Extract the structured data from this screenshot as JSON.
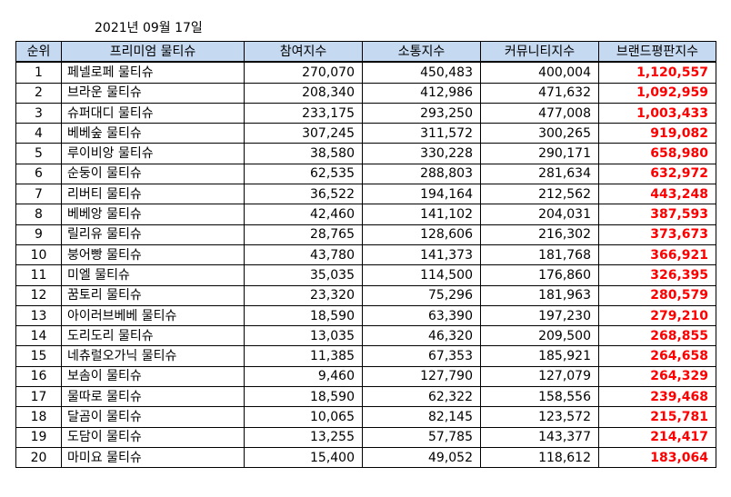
{
  "date": "2021년 09월 17일",
  "headers": [
    "순위",
    "프리미엄 물티슈",
    "참여지수",
    "소통지수",
    "커뮤니티지수",
    "브랜드평판지수"
  ],
  "accent_color": "#ff0000",
  "header_bg": "#c5d9f1",
  "rows": [
    {
      "rank": "1",
      "name": "페넬로페 물티슈",
      "participation": "270,070",
      "communication": "450,483",
      "community": "400,004",
      "brand": "1,120,557"
    },
    {
      "rank": "2",
      "name": "브라운 물티슈",
      "participation": "208,340",
      "communication": "412,986",
      "community": "471,632",
      "brand": "1,092,959"
    },
    {
      "rank": "3",
      "name": "슈퍼대디 물티슈",
      "participation": "233,175",
      "communication": "293,250",
      "community": "477,008",
      "brand": "1,003,433"
    },
    {
      "rank": "4",
      "name": "베베숲 물티슈",
      "participation": "307,245",
      "communication": "311,572",
      "community": "300,265",
      "brand": "919,082"
    },
    {
      "rank": "5",
      "name": "루이비앙 물티슈",
      "participation": "38,580",
      "communication": "330,228",
      "community": "290,171",
      "brand": "658,980"
    },
    {
      "rank": "6",
      "name": "순둥이 물티슈",
      "participation": "62,535",
      "communication": "288,803",
      "community": "281,634",
      "brand": "632,972"
    },
    {
      "rank": "7",
      "name": "리버티 물티슈",
      "participation": "36,522",
      "communication": "194,164",
      "community": "212,562",
      "brand": "443,248"
    },
    {
      "rank": "8",
      "name": "베베앙 물티슈",
      "participation": "42,460",
      "communication": "141,102",
      "community": "204,031",
      "brand": "387,593"
    },
    {
      "rank": "9",
      "name": "릴리유 물티슈",
      "participation": "28,765",
      "communication": "128,606",
      "community": "216,302",
      "brand": "373,673"
    },
    {
      "rank": "10",
      "name": "붕어빵 물티슈",
      "participation": "43,780",
      "communication": "141,373",
      "community": "181,768",
      "brand": "366,921"
    },
    {
      "rank": "11",
      "name": "미엘 물티슈",
      "participation": "35,035",
      "communication": "114,500",
      "community": "176,860",
      "brand": "326,395"
    },
    {
      "rank": "12",
      "name": "꿈토리 물티슈",
      "participation": "23,320",
      "communication": "75,296",
      "community": "181,963",
      "brand": "280,579"
    },
    {
      "rank": "13",
      "name": "아이러브베베 물티슈",
      "participation": "18,590",
      "communication": "63,390",
      "community": "197,230",
      "brand": "279,210"
    },
    {
      "rank": "14",
      "name": "도리도리 물티슈",
      "participation": "13,035",
      "communication": "46,320",
      "community": "209,500",
      "brand": "268,855"
    },
    {
      "rank": "15",
      "name": "네츄럴오가닉 물티슈",
      "participation": "11,385",
      "communication": "67,353",
      "community": "185,921",
      "brand": "264,658"
    },
    {
      "rank": "16",
      "name": "보솜이 물티슈",
      "participation": "9,460",
      "communication": "127,790",
      "community": "127,079",
      "brand": "264,329"
    },
    {
      "rank": "17",
      "name": "물따로 물티슈",
      "participation": "18,590",
      "communication": "62,322",
      "community": "158,556",
      "brand": "239,468"
    },
    {
      "rank": "18",
      "name": "달곰이 물티슈",
      "participation": "10,065",
      "communication": "82,145",
      "community": "123,572",
      "brand": "215,781"
    },
    {
      "rank": "19",
      "name": "도담이 물티슈",
      "participation": "13,255",
      "communication": "57,785",
      "community": "143,377",
      "brand": "214,417"
    },
    {
      "rank": "20",
      "name": "마미요 물티슈",
      "participation": "15,400",
      "communication": "49,052",
      "community": "118,612",
      "brand": "183,064"
    }
  ]
}
